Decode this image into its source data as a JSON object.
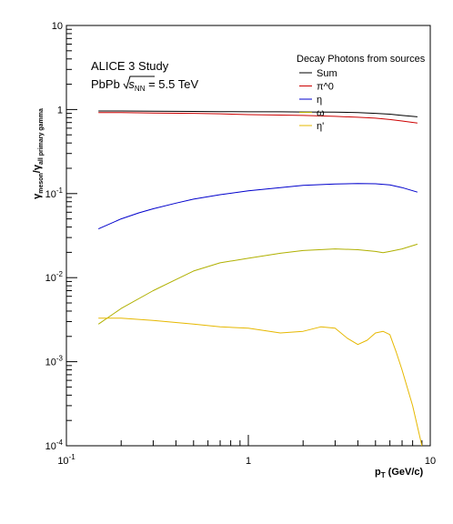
{
  "chart_data": {
    "type": "line",
    "xlabel": {
      "main": "p",
      "sub": "T",
      "rest": " (GeV/c)"
    },
    "ylabel": {
      "main": "γ",
      "sub1": "meson",
      "mid": "/γ",
      "sub2": "all primary gamma"
    },
    "xscale": "log",
    "yscale": "log",
    "xlim": [
      0.1,
      10
    ],
    "ylim": [
      0.0001,
      10
    ],
    "x_ticks": [
      {
        "value": 0.1,
        "base": "10",
        "exp": "-1"
      },
      {
        "value": 1,
        "base": "1",
        "exp": ""
      },
      {
        "value": 10,
        "base": "10",
        "exp": ""
      }
    ],
    "y_ticks": [
      {
        "value": 10,
        "base": "10",
        "exp": ""
      },
      {
        "value": 1,
        "base": "1",
        "exp": ""
      },
      {
        "value": 0.1,
        "base": "10",
        "exp": "-1"
      },
      {
        "value": 0.01,
        "base": "10",
        "exp": "-2"
      },
      {
        "value": 0.001,
        "base": "10",
        "exp": "-3"
      },
      {
        "value": 0.0001,
        "base": "10",
        "exp": "-4"
      }
    ],
    "annotation": {
      "line1": "ALICE 3 Study",
      "line2_prefix": "PbPb ",
      "sqrt_s": "s",
      "sqrt_sub": "NN",
      "line2_suffix": " = 5.5 TeV"
    },
    "legend": {
      "title": "Decay Photons from sources",
      "position": "top-right"
    },
    "grid": false,
    "series": [
      {
        "name": "Sum",
        "color": "#000000",
        "x": [
          0.15,
          0.2,
          0.3,
          0.5,
          0.7,
          1.0,
          1.5,
          2.0,
          3.0,
          4.0,
          5.0,
          6.0,
          7.0,
          8.5
        ],
        "y": [
          0.96,
          0.96,
          0.955,
          0.95,
          0.945,
          0.94,
          0.94,
          0.935,
          0.93,
          0.92,
          0.9,
          0.88,
          0.85,
          0.82
        ]
      },
      {
        "name": "π^0",
        "color": "#cc0000",
        "x": [
          0.15,
          0.2,
          0.3,
          0.5,
          0.7,
          1.0,
          1.5,
          2.0,
          3.0,
          4.0,
          5.0,
          6.0,
          7.0,
          8.5
        ],
        "y": [
          0.92,
          0.92,
          0.91,
          0.9,
          0.89,
          0.87,
          0.86,
          0.85,
          0.83,
          0.81,
          0.79,
          0.76,
          0.73,
          0.69
        ]
      },
      {
        "name": "η",
        "color": "#0000cc",
        "x": [
          0.15,
          0.2,
          0.25,
          0.3,
          0.4,
          0.5,
          0.7,
          1.0,
          1.5,
          2.0,
          3.0,
          4.0,
          5.0,
          6.0,
          7.0,
          8.5
        ],
        "y": [
          0.038,
          0.05,
          0.059,
          0.066,
          0.077,
          0.086,
          0.097,
          0.108,
          0.118,
          0.125,
          0.13,
          0.132,
          0.131,
          0.127,
          0.118,
          0.104
        ]
      },
      {
        "name": "ω",
        "color": "#b0b000",
        "x": [
          0.15,
          0.2,
          0.3,
          0.4,
          0.5,
          0.7,
          1.0,
          1.5,
          2.0,
          3.0,
          4.0,
          5.0,
          5.5,
          6.0,
          7.0,
          8.5
        ],
        "y": [
          0.0028,
          0.0043,
          0.007,
          0.0095,
          0.012,
          0.015,
          0.017,
          0.0195,
          0.021,
          0.022,
          0.0215,
          0.0205,
          0.0198,
          0.0205,
          0.022,
          0.025
        ]
      },
      {
        "name": "η'",
        "color": "#e6b800",
        "x": [
          0.15,
          0.2,
          0.3,
          0.5,
          0.7,
          1.0,
          1.5,
          2.0,
          2.5,
          3.0,
          3.5,
          4.0,
          4.5,
          5.0,
          5.5,
          6.0,
          6.5,
          7.0,
          8.0,
          9.0
        ],
        "y": [
          0.0033,
          0.0033,
          0.0031,
          0.0028,
          0.0026,
          0.0025,
          0.0022,
          0.0023,
          0.0026,
          0.0025,
          0.0019,
          0.0016,
          0.0018,
          0.0022,
          0.0023,
          0.0021,
          0.0013,
          0.0008,
          0.0003,
          0.0001
        ]
      }
    ]
  }
}
